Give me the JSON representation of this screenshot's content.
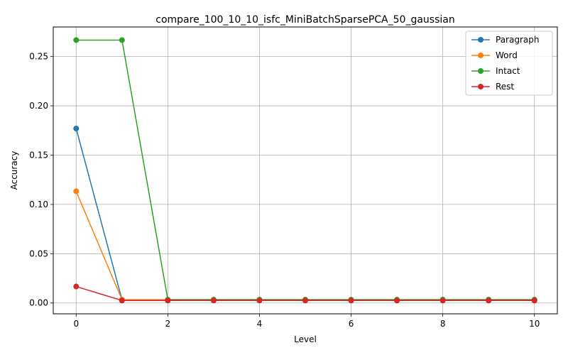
{
  "chart_data": {
    "type": "line",
    "title": "compare_100_10_10_isfc_MiniBatchSparsePCA_50_gaussian",
    "xlabel": "Level",
    "ylabel": "Accuracy",
    "x": [
      0,
      1,
      2,
      3,
      4,
      5,
      6,
      7,
      8,
      9,
      10
    ],
    "xlim": [
      -0.5,
      10.5
    ],
    "ylim": [
      -0.011,
      0.28
    ],
    "xticks": [
      0,
      2,
      4,
      6,
      8,
      10
    ],
    "yticks": [
      0.0,
      0.05,
      0.1,
      0.15,
      0.2,
      0.25
    ],
    "ytick_labels": [
      "0.00",
      "0.05",
      "0.10",
      "0.15",
      "0.20",
      "0.25"
    ],
    "grid": true,
    "legend_position": "top-right",
    "series": [
      {
        "name": "Paragraph",
        "color": "#1f77b4",
        "values": [
          0.177,
          0.0033,
          0.0033,
          0.0033,
          0.0033,
          0.0033,
          0.0033,
          0.0033,
          0.0033,
          0.0033,
          0.0033
        ]
      },
      {
        "name": "Word",
        "color": "#ff7f0e",
        "values": [
          0.1133,
          0.0033,
          0.0033,
          0.0033,
          0.0033,
          0.0033,
          0.0033,
          0.0033,
          0.0033,
          0.0033,
          0.0033
        ]
      },
      {
        "name": "Intact",
        "color": "#2ca02c",
        "values": [
          0.2667,
          0.2667,
          0.0033,
          0.0033,
          0.0033,
          0.0033,
          0.0033,
          0.0033,
          0.0033,
          0.0033,
          0.0033
        ]
      },
      {
        "name": "Rest",
        "color": "#d62728",
        "values": [
          0.0167,
          0.0025,
          0.0025,
          0.0025,
          0.0025,
          0.0025,
          0.0025,
          0.0025,
          0.0025,
          0.0025,
          0.0025
        ]
      }
    ]
  }
}
